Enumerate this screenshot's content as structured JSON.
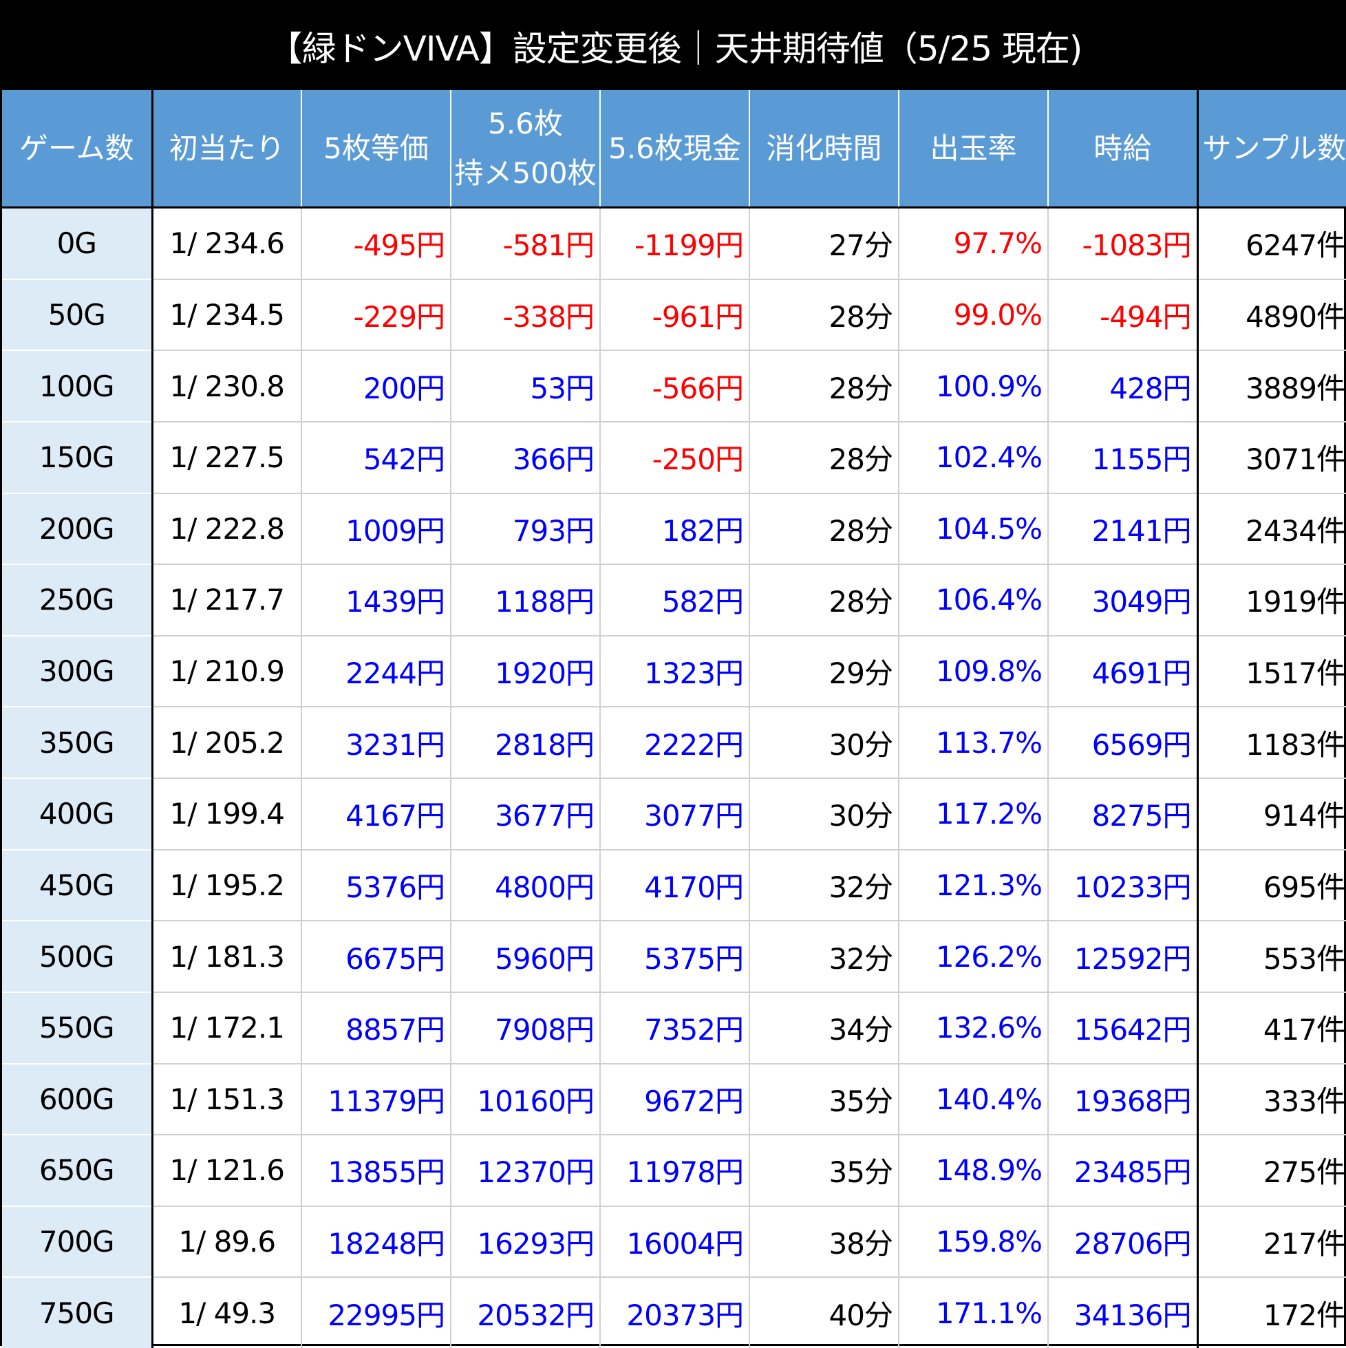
{
  "title": "【緑ドンVIVA】設定変更後｜天井期待値（5/25 現在)",
  "colors": {
    "header_bg": "#5b9bd5",
    "games_col_bg": "#ddebf7",
    "negative": "#ff0000",
    "positive": "#0000ff",
    "title_bg": "#000000"
  },
  "chart_data": {
    "type": "table",
    "title": "【緑ドンVIVA】設定変更後｜天井期待値（5/25 現在)",
    "columns": [
      [
        "ゲーム数"
      ],
      [
        "初当たり"
      ],
      [
        "5枚等価"
      ],
      [
        "5.6枚",
        "持メ500枚"
      ],
      [
        "5.6枚現金"
      ],
      [
        "消化時間"
      ],
      [
        "出玉率"
      ],
      [
        "時給"
      ],
      [
        "サンプル数"
      ]
    ],
    "rows": [
      [
        "0G",
        "1/ 234.6",
        "-495円",
        "-581円",
        "-1199円",
        "27分",
        "97.7%",
        "-1083円",
        "6247件"
      ],
      [
        "50G",
        "1/ 234.5",
        "-229円",
        "-338円",
        "-961円",
        "28分",
        "99.0%",
        "-494円",
        "4890件"
      ],
      [
        "100G",
        "1/ 230.8",
        "200円",
        "53円",
        "-566円",
        "28分",
        "100.9%",
        "428円",
        "3889件"
      ],
      [
        "150G",
        "1/ 227.5",
        "542円",
        "366円",
        "-250円",
        "28分",
        "102.4%",
        "1155円",
        "3071件"
      ],
      [
        "200G",
        "1/ 222.8",
        "1009円",
        "793円",
        "182円",
        "28分",
        "104.5%",
        "2141円",
        "2434件"
      ],
      [
        "250G",
        "1/ 217.7",
        "1439円",
        "1188円",
        "582円",
        "28分",
        "106.4%",
        "3049円",
        "1919件"
      ],
      [
        "300G",
        "1/ 210.9",
        "2244円",
        "1920円",
        "1323円",
        "29分",
        "109.8%",
        "4691円",
        "1517件"
      ],
      [
        "350G",
        "1/ 205.2",
        "3231円",
        "2818円",
        "2222円",
        "30分",
        "113.7%",
        "6569円",
        "1183件"
      ],
      [
        "400G",
        "1/ 199.4",
        "4167円",
        "3677円",
        "3077円",
        "30分",
        "117.2%",
        "8275円",
        "914件"
      ],
      [
        "450G",
        "1/ 195.2",
        "5376円",
        "4800円",
        "4170円",
        "32分",
        "121.3%",
        "10233円",
        "695件"
      ],
      [
        "500G",
        "1/ 181.3",
        "6675円",
        "5960円",
        "5375円",
        "32分",
        "126.2%",
        "12592円",
        "553件"
      ],
      [
        "550G",
        "1/ 172.1",
        "8857円",
        "7908円",
        "7352円",
        "34分",
        "132.6%",
        "15642円",
        "417件"
      ],
      [
        "600G",
        "1/ 151.3",
        "11379円",
        "10160円",
        "9672円",
        "35分",
        "140.4%",
        "19368円",
        "333件"
      ],
      [
        "650G",
        "1/ 121.6",
        "13855円",
        "12370円",
        "11978円",
        "35分",
        "148.9%",
        "23485円",
        "275件"
      ],
      [
        "700G",
        "1/ 89.6",
        "18248円",
        "16293円",
        "16004円",
        "38分",
        "159.8%",
        "28706円",
        "217件"
      ],
      [
        "750G",
        "1/ 49.3",
        "22995円",
        "20532円",
        "20373円",
        "40分",
        "171.1%",
        "34136円",
        "172件"
      ]
    ]
  }
}
